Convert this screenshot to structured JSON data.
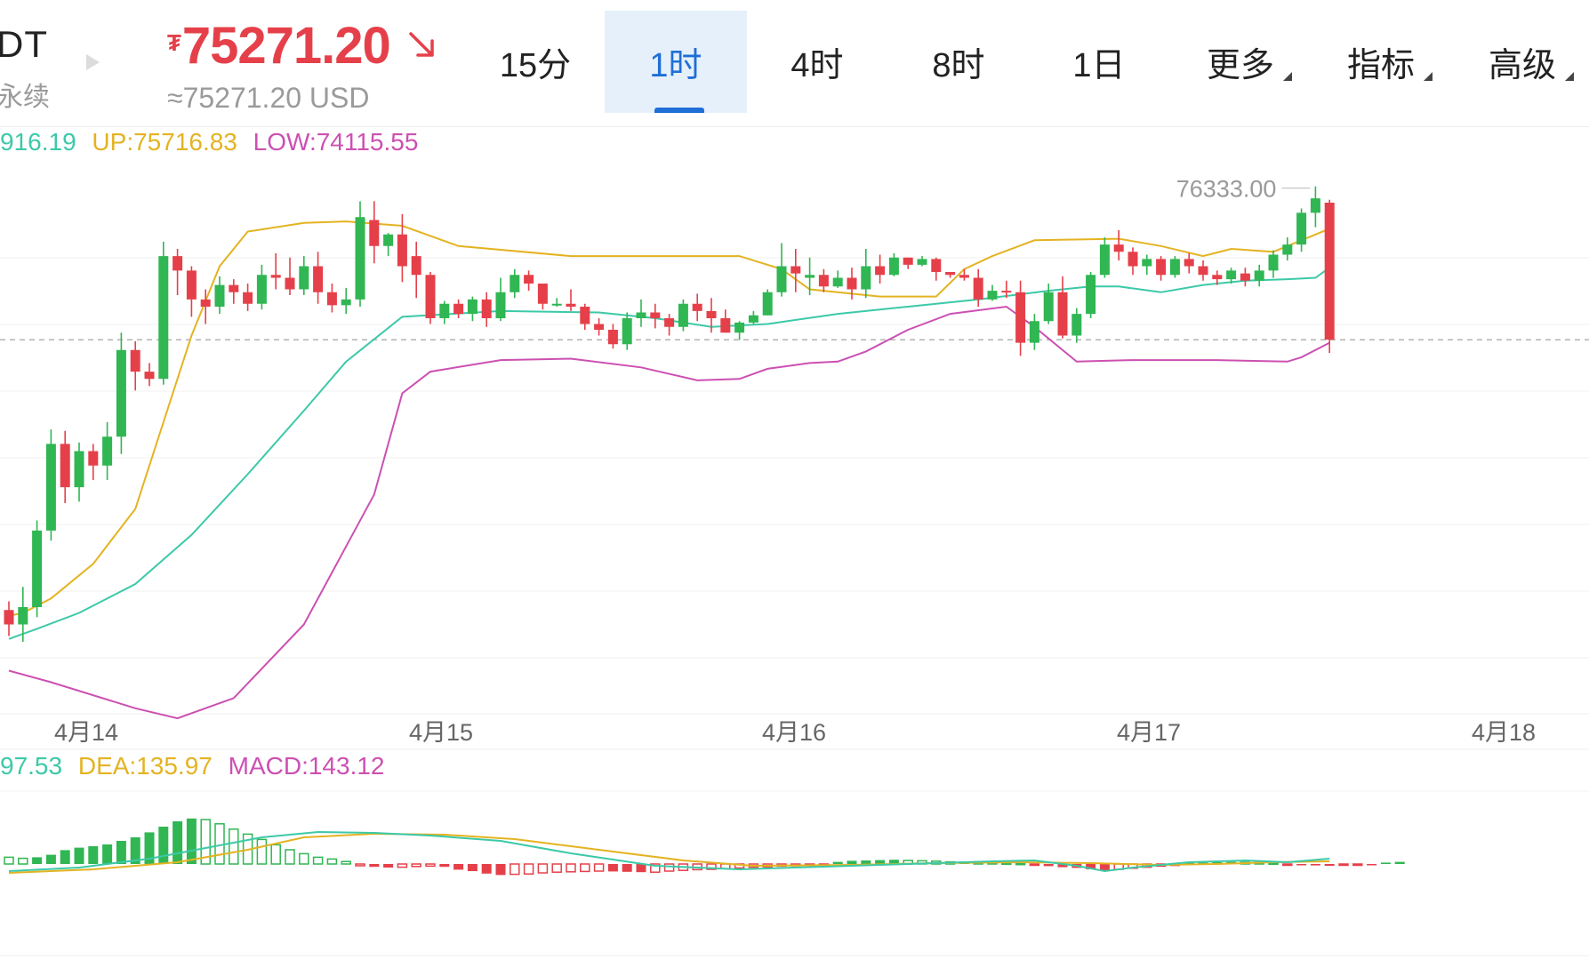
{
  "header": {
    "symbol_fragment": "DT",
    "sub_fragment": "永续",
    "price": "75271.20",
    "currency_symbol": "₮",
    "price_usd": "≈75271.20 USD"
  },
  "tabs": [
    {
      "label": "15分",
      "active": false,
      "has_menu": false
    },
    {
      "label": "1时",
      "active": true,
      "has_menu": false
    },
    {
      "label": "4时",
      "active": false,
      "has_menu": false
    },
    {
      "label": "8时",
      "active": false,
      "has_menu": false
    },
    {
      "label": "1日",
      "active": false,
      "has_menu": false
    },
    {
      "label": "更多",
      "active": false,
      "has_menu": true
    },
    {
      "label": "指标",
      "active": false,
      "has_menu": true
    },
    {
      "label": "高级",
      "active": false,
      "has_menu": true
    }
  ],
  "boll_legend": {
    "mid": "916.19",
    "up": "UP:75716.83",
    "low": "LOW:74115.55"
  },
  "macd_legend": {
    "dif": "97.53",
    "dea": "DEA:135.97",
    "macd": "MACD:143.12"
  },
  "colors": {
    "up": "#30b653",
    "down": "#e5404a",
    "mid": "#3cc9a8",
    "upper": "#e4b322",
    "lower": "#cc50b2",
    "accent": "#1f6fd6"
  },
  "chart_data": {
    "type": "candlestick",
    "x_labels": [
      "4月14",
      "4月15",
      "4月16",
      "4月17",
      "4月18"
    ],
    "max_label": "76333.00",
    "last_price": 75271.2,
    "ylim": [
      72700,
      76700
    ],
    "candles": [
      [
        73400,
        73300,
        73220,
        73460
      ],
      [
        73300,
        73420,
        73180,
        73560
      ],
      [
        73420,
        73950,
        73350,
        74020
      ],
      [
        73950,
        74550,
        73880,
        74650
      ],
      [
        74550,
        74250,
        74140,
        74640
      ],
      [
        74250,
        74500,
        74150,
        74560
      ],
      [
        74500,
        74400,
        74300,
        74550
      ],
      [
        74400,
        74600,
        74300,
        74700
      ],
      [
        74600,
        75200,
        74480,
        75320
      ],
      [
        75200,
        75050,
        74920,
        75260
      ],
      [
        75050,
        75000,
        74950,
        75110
      ],
      [
        75000,
        75850,
        74960,
        75950
      ],
      [
        75850,
        75750,
        75580,
        75900
      ],
      [
        75750,
        75550,
        75430,
        75780
      ],
      [
        75550,
        75500,
        75380,
        75620
      ],
      [
        75500,
        75650,
        75450,
        75710
      ],
      [
        75650,
        75600,
        75520,
        75690
      ],
      [
        75600,
        75520,
        75470,
        75660
      ],
      [
        75520,
        75720,
        75480,
        75790
      ],
      [
        75720,
        75700,
        75620,
        75870
      ],
      [
        75700,
        75620,
        75580,
        75840
      ],
      [
        75620,
        75780,
        75580,
        75850
      ],
      [
        75780,
        75600,
        75520,
        75880
      ],
      [
        75600,
        75510,
        75460,
        75660
      ],
      [
        75510,
        75550,
        75450,
        75630
      ],
      [
        75550,
        76120,
        75500,
        76230
      ],
      [
        76100,
        75920,
        75800,
        76230
      ],
      [
        75920,
        76000,
        75850,
        76010
      ],
      [
        76000,
        75780,
        75670,
        76140
      ],
      [
        75850,
        75720,
        75560,
        75950
      ],
      [
        75720,
        75420,
        75380,
        75740
      ],
      [
        75420,
        75520,
        75380,
        75540
      ],
      [
        75520,
        75450,
        75420,
        75550
      ],
      [
        75450,
        75550,
        75400,
        75570
      ],
      [
        75550,
        75420,
        75360,
        75600
      ],
      [
        75420,
        75600,
        75400,
        75700
      ],
      [
        75600,
        75720,
        75560,
        75760
      ],
      [
        75720,
        75660,
        75610,
        75750
      ],
      [
        75660,
        75520,
        75480,
        75660
      ],
      [
        75520,
        75520,
        75500,
        75560
      ],
      [
        75520,
        75500,
        75470,
        75620
      ],
      [
        75500,
        75380,
        75340,
        75520
      ],
      [
        75380,
        75340,
        75300,
        75420
      ],
      [
        75340,
        75240,
        75210,
        75380
      ],
      [
        75240,
        75420,
        75200,
        75460
      ],
      [
        75420,
        75460,
        75360,
        75550
      ],
      [
        75460,
        75420,
        75350,
        75520
      ],
      [
        75420,
        75360,
        75300,
        75450
      ],
      [
        75360,
        75520,
        75330,
        75550
      ],
      [
        75520,
        75470,
        75400,
        75590
      ],
      [
        75470,
        75420,
        75320,
        75560
      ],
      [
        75420,
        75320,
        75320,
        75480
      ],
      [
        75320,
        75390,
        75270,
        75400
      ],
      [
        75390,
        75440,
        75380,
        75470
      ],
      [
        75440,
        75600,
        75440,
        75620
      ],
      [
        75600,
        75780,
        75570,
        75940
      ],
      [
        75780,
        75730,
        75600,
        75900
      ],
      [
        75700,
        75720,
        75580,
        75840
      ],
      [
        75720,
        75640,
        75600,
        75760
      ],
      [
        75640,
        75700,
        75630,
        75750
      ],
      [
        75700,
        75620,
        75550,
        75770
      ],
      [
        75620,
        75780,
        75560,
        75900
      ],
      [
        75780,
        75720,
        75660,
        75860
      ],
      [
        75720,
        75840,
        75710,
        75870
      ],
      [
        75840,
        75790,
        75760,
        75840
      ],
      [
        75790,
        75830,
        75780,
        75850
      ],
      [
        75830,
        75740,
        75680,
        75840
      ],
      [
        75740,
        75720,
        75700,
        75740
      ],
      [
        75720,
        75700,
        75680,
        75760
      ],
      [
        75700,
        75550,
        75500,
        75760
      ],
      [
        75550,
        75610,
        75540,
        75650
      ],
      [
        75610,
        75600,
        75560,
        75680
      ],
      [
        75600,
        75250,
        75160,
        75680
      ],
      [
        75250,
        75400,
        75200,
        75450
      ],
      [
        75400,
        75600,
        75380,
        75660
      ],
      [
        75600,
        75300,
        75280,
        75710
      ],
      [
        75300,
        75450,
        75250,
        75490
      ],
      [
        75450,
        75720,
        75420,
        75740
      ],
      [
        75720,
        75930,
        75700,
        75980
      ],
      [
        75930,
        75880,
        75820,
        76030
      ],
      [
        75880,
        75780,
        75720,
        75910
      ],
      [
        75780,
        75830,
        75720,
        75860
      ],
      [
        75830,
        75720,
        75680,
        75850
      ],
      [
        75720,
        75830,
        75700,
        75850
      ],
      [
        75830,
        75780,
        75730,
        75870
      ],
      [
        75780,
        75720,
        75680,
        75820
      ],
      [
        75720,
        75690,
        75650,
        75750
      ],
      [
        75690,
        75750,
        75660,
        75770
      ],
      [
        75730,
        75680,
        75640,
        75770
      ],
      [
        75680,
        75750,
        75640,
        75790
      ],
      [
        75750,
        75860,
        75700,
        75890
      ],
      [
        75860,
        75930,
        75820,
        75980
      ],
      [
        75930,
        76150,
        75880,
        76180
      ],
      [
        76150,
        76250,
        76050,
        76333
      ],
      [
        76220,
        75271.2,
        75180,
        76240
      ]
    ],
    "boll": {
      "upper": [
        [
          73360,
          0
        ],
        [
          73380,
          1
        ],
        [
          73480,
          3
        ],
        [
          73720,
          6
        ],
        [
          74100,
          9
        ],
        [
          74700,
          11
        ],
        [
          75300,
          13
        ],
        [
          75780,
          15
        ],
        [
          76020,
          17
        ],
        [
          76080,
          21
        ],
        [
          76090,
          24
        ],
        [
          76060,
          28
        ],
        [
          75920,
          32
        ],
        [
          75850,
          40
        ],
        [
          75850,
          47
        ],
        [
          75850,
          52
        ],
        [
          75760,
          55
        ],
        [
          75620,
          57
        ],
        [
          75570,
          62
        ],
        [
          75570,
          66
        ],
        [
          75760,
          68
        ],
        [
          75850,
          70
        ],
        [
          75960,
          73
        ],
        [
          75970,
          79
        ],
        [
          75920,
          82
        ],
        [
          75850,
          85
        ],
        [
          75900,
          87
        ],
        [
          75880,
          90
        ],
        [
          75960,
          92
        ],
        [
          76040,
          94
        ]
      ],
      "mid": [
        [
          73200,
          0
        ],
        [
          73270,
          2
        ],
        [
          73380,
          5
        ],
        [
          73580,
          9
        ],
        [
          73920,
          13
        ],
        [
          74340,
          17
        ],
        [
          74780,
          21
        ],
        [
          75120,
          24
        ],
        [
          75430,
          28
        ],
        [
          75470,
          35
        ],
        [
          75460,
          42
        ],
        [
          75420,
          46
        ],
        [
          75360,
          50
        ],
        [
          75380,
          54
        ],
        [
          75450,
          59
        ],
        [
          75500,
          64
        ],
        [
          75550,
          69
        ],
        [
          75610,
          74
        ],
        [
          75640,
          77
        ],
        [
          75640,
          79
        ],
        [
          75600,
          82
        ],
        [
          75650,
          85
        ],
        [
          75680,
          88
        ],
        [
          75690,
          91
        ],
        [
          75700,
          93
        ],
        [
          75770,
          94
        ]
      ],
      "lower": [
        [
          72980,
          0
        ],
        [
          72900,
          3
        ],
        [
          72720,
          9
        ],
        [
          72650,
          12
        ],
        [
          72790,
          16
        ],
        [
          73300,
          21
        ],
        [
          74200,
          26
        ],
        [
          74900,
          28
        ],
        [
          75050,
          30
        ],
        [
          75130,
          35
        ],
        [
          75140,
          40
        ],
        [
          75080,
          45
        ],
        [
          74990,
          49
        ],
        [
          75000,
          52
        ],
        [
          75070,
          54
        ],
        [
          75110,
          57
        ],
        [
          75120,
          59
        ],
        [
          75190,
          61
        ],
        [
          75340,
          64
        ],
        [
          75450,
          67
        ],
        [
          75500,
          71
        ],
        [
          75360,
          73
        ],
        [
          75120,
          76
        ],
        [
          75130,
          80
        ],
        [
          75130,
          86
        ],
        [
          75120,
          91
        ],
        [
          75150,
          92
        ],
        [
          75250,
          94
        ]
      ]
    },
    "macd": {
      "hist": [
        38,
        32,
        38,
        52,
        78,
        92,
        100,
        110,
        130,
        150,
        178,
        210,
        240,
        256,
        250,
        226,
        196,
        168,
        138,
        108,
        80,
        58,
        38,
        28,
        14,
        -10,
        -16,
        -20,
        -18,
        -14,
        -12,
        -16,
        -32,
        -40,
        -54,
        -62,
        -58,
        -56,
        -50,
        -46,
        -44,
        -42,
        -40,
        -42,
        -44,
        -46,
        -46,
        -40,
        -36,
        -32,
        -30,
        -26,
        -22,
        -18,
        -16,
        -12,
        -10,
        -8,
        -6,
        12,
        18,
        20,
        22,
        24,
        20,
        18,
        16,
        12,
        14,
        12,
        8,
        6,
        4,
        -2,
        -12,
        -18,
        -22,
        -30,
        -36,
        -30,
        -24,
        -18,
        -12,
        -8,
        6,
        8,
        10,
        12,
        10,
        8,
        6,
        -4,
        -6,
        -8,
        -10,
        -6,
        -4,
        -6,
        8,
        12
      ],
      "dif": [
        [
          -40,
          0
        ],
        [
          -20,
          5
        ],
        [
          30,
          10
        ],
        [
          90,
          14
        ],
        [
          150,
          18
        ],
        [
          180,
          22
        ],
        [
          175,
          26
        ],
        [
          160,
          30
        ],
        [
          130,
          35
        ],
        [
          60,
          40
        ],
        [
          -10,
          46
        ],
        [
          -30,
          52
        ],
        [
          -15,
          58
        ],
        [
          0,
          64
        ],
        [
          15,
          70
        ],
        [
          20,
          73
        ],
        [
          -10,
          76
        ],
        [
          -40,
          78
        ],
        [
          -20,
          80
        ],
        [
          10,
          84
        ],
        [
          20,
          88
        ],
        [
          10,
          91
        ],
        [
          30,
          94
        ]
      ],
      "dea": [
        [
          -50,
          0
        ],
        [
          -30,
          6
        ],
        [
          10,
          12
        ],
        [
          80,
          17
        ],
        [
          150,
          21
        ],
        [
          170,
          26
        ],
        [
          165,
          31
        ],
        [
          140,
          36
        ],
        [
          80,
          42
        ],
        [
          20,
          48
        ],
        [
          -10,
          53
        ],
        [
          -5,
          60
        ],
        [
          5,
          66
        ],
        [
          10,
          72
        ],
        [
          5,
          77
        ],
        [
          -5,
          82
        ],
        [
          0,
          86
        ],
        [
          10,
          90
        ],
        [
          15,
          94
        ]
      ]
    }
  }
}
